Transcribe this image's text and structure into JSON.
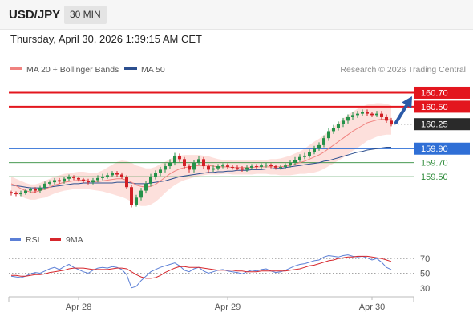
{
  "header": {
    "symbol": "USD/JPY",
    "interval": "30 MIN",
    "datetime": "Thursday, April 30, 2026 1:39:15 AM CET"
  },
  "legend": {
    "ma20": "MA 20 + Bollinger Bands",
    "ma50": "MA 50",
    "copyright": "Research © 2026 Trading Central",
    "rsi": "RSI",
    "rsi_ma": "9MA"
  },
  "colors": {
    "up": "#26924a",
    "down": "#d11f25",
    "resistance": "#e3161e",
    "support": "#2f6fd6",
    "target_green": "#2e8b3a",
    "ma20": "#f0827f",
    "ma50": "#2c4f8f",
    "bands_fill": "#fde0dc",
    "arrow": "#2b5aa8",
    "rsi": "#5b7fd6",
    "rsi_ma": "#d6262c"
  },
  "chart_data": [
    {
      "type": "candlestick",
      "title": "USD/JPY 30 MIN",
      "ylim": [
        159.02,
        160.82
      ],
      "x_labels": [
        "Apr 28",
        "Apr 29",
        "Apr 30"
      ],
      "levels": [
        {
          "value": 160.7,
          "label": "160.70",
          "kind": "resistance"
        },
        {
          "value": 160.5,
          "label": "160.50",
          "kind": "resistance"
        },
        {
          "value": 160.25,
          "label": "160.25",
          "kind": "last"
        },
        {
          "value": 159.9,
          "label": "159.90",
          "kind": "support"
        },
        {
          "value": 159.7,
          "label": "159.70",
          "kind": "target"
        },
        {
          "value": 159.5,
          "label": "159.50",
          "kind": "target"
        }
      ],
      "last_price": 160.25,
      "target_arrow": {
        "from": 160.25,
        "to": 160.66
      },
      "ohlc_open": [
        159.28,
        159.26,
        159.25,
        159.27,
        159.3,
        159.32,
        159.3,
        159.34,
        159.4,
        159.42,
        159.45,
        159.43,
        159.47,
        159.5,
        159.48,
        159.46,
        159.44,
        159.42,
        159.45,
        159.48,
        159.5,
        159.52,
        159.55,
        159.53,
        159.5,
        159.35,
        159.1,
        159.2,
        159.3,
        159.4,
        159.5,
        159.55,
        159.6,
        159.65,
        159.7,
        159.8,
        159.75,
        159.65,
        159.6,
        159.7,
        159.75,
        159.65,
        159.6,
        159.62,
        159.65,
        159.66,
        159.64,
        159.63,
        159.62,
        159.6,
        159.63,
        159.65,
        159.64,
        159.66,
        159.67,
        159.65,
        159.63,
        159.64,
        159.66,
        159.7,
        159.74,
        159.78,
        159.8,
        159.85,
        159.9,
        159.95,
        160.05,
        160.15,
        160.2,
        160.25,
        160.3,
        160.35,
        160.38,
        160.4,
        160.42,
        160.4,
        160.38,
        160.4,
        160.35,
        160.3
      ],
      "ohlc_close": [
        159.26,
        159.25,
        159.27,
        159.3,
        159.32,
        159.3,
        159.34,
        159.4,
        159.42,
        159.45,
        159.43,
        159.47,
        159.5,
        159.48,
        159.46,
        159.44,
        159.42,
        159.45,
        159.48,
        159.5,
        159.52,
        159.55,
        159.53,
        159.5,
        159.35,
        159.1,
        159.2,
        159.3,
        159.4,
        159.5,
        159.55,
        159.6,
        159.65,
        159.7,
        159.8,
        159.75,
        159.65,
        159.6,
        159.7,
        159.75,
        159.65,
        159.6,
        159.62,
        159.65,
        159.66,
        159.64,
        159.63,
        159.62,
        159.6,
        159.63,
        159.65,
        159.64,
        159.66,
        159.67,
        159.65,
        159.63,
        159.64,
        159.66,
        159.7,
        159.74,
        159.78,
        159.8,
        159.85,
        159.9,
        159.95,
        160.05,
        160.15,
        160.2,
        160.25,
        160.3,
        160.35,
        160.38,
        160.4,
        160.42,
        160.4,
        160.38,
        160.4,
        160.35,
        160.3,
        160.25
      ],
      "ohlc_high": [
        159.3,
        159.29,
        159.3,
        159.33,
        159.35,
        159.35,
        159.37,
        159.43,
        159.45,
        159.48,
        159.48,
        159.5,
        159.53,
        159.52,
        159.5,
        159.48,
        159.47,
        159.48,
        159.52,
        159.54,
        159.56,
        159.58,
        159.58,
        159.56,
        159.52,
        159.38,
        159.24,
        159.34,
        159.44,
        159.54,
        159.59,
        159.64,
        159.69,
        159.75,
        159.84,
        159.83,
        159.78,
        159.68,
        159.74,
        159.79,
        159.78,
        159.68,
        159.66,
        159.68,
        159.69,
        159.69,
        159.67,
        159.66,
        159.65,
        159.66,
        159.68,
        159.68,
        159.69,
        159.7,
        159.69,
        159.67,
        159.67,
        159.69,
        159.74,
        159.78,
        159.82,
        159.84,
        159.89,
        159.94,
        159.99,
        160.09,
        160.19,
        160.24,
        160.29,
        160.34,
        160.39,
        160.42,
        160.44,
        160.46,
        160.46,
        160.43,
        160.44,
        160.44,
        160.39,
        160.34
      ],
      "ohlc_low": [
        159.23,
        159.22,
        159.22,
        159.24,
        159.27,
        159.27,
        159.27,
        159.31,
        159.37,
        159.39,
        159.4,
        159.4,
        159.44,
        159.45,
        159.43,
        159.41,
        159.39,
        159.39,
        159.42,
        159.45,
        159.47,
        159.49,
        159.5,
        159.47,
        159.32,
        159.06,
        159.07,
        159.16,
        159.26,
        159.36,
        159.46,
        159.51,
        159.56,
        159.61,
        159.66,
        159.71,
        159.61,
        159.56,
        159.56,
        159.66,
        159.61,
        159.56,
        159.57,
        159.59,
        159.62,
        159.61,
        159.6,
        159.59,
        159.57,
        159.57,
        159.6,
        159.61,
        159.61,
        159.63,
        159.62,
        159.6,
        159.6,
        159.61,
        159.63,
        159.67,
        159.71,
        159.75,
        159.77,
        159.82,
        159.87,
        159.92,
        160.01,
        160.11,
        160.16,
        160.21,
        160.26,
        160.31,
        160.34,
        160.37,
        160.37,
        160.35,
        160.35,
        160.32,
        160.27,
        160.22
      ],
      "ma20": [
        159.4,
        159.37,
        159.33,
        159.3,
        159.28,
        159.28,
        159.3,
        159.32,
        159.35,
        159.38,
        159.4,
        159.42,
        159.43,
        159.44,
        159.45,
        159.45,
        159.44,
        159.43,
        159.43,
        159.44,
        159.45,
        159.46,
        159.47,
        159.47,
        159.45,
        159.42,
        159.38,
        159.36,
        159.35,
        159.36,
        159.39,
        159.44,
        159.49,
        159.54,
        159.58,
        159.61,
        159.63,
        159.64,
        159.65,
        159.66,
        159.66,
        159.66,
        159.65,
        159.64,
        159.64,
        159.64,
        159.63,
        159.63,
        159.63,
        159.63,
        159.63,
        159.64,
        159.64,
        159.64,
        159.64,
        159.64,
        159.64,
        159.65,
        159.66,
        159.68,
        159.7,
        159.72,
        159.75,
        159.78,
        159.81,
        159.85,
        159.9,
        159.95,
        160.0,
        160.05,
        160.1,
        160.15,
        160.19,
        160.23,
        160.27,
        160.29,
        160.31,
        160.32,
        160.32,
        160.31
      ],
      "ma50": [
        159.38,
        159.37,
        159.36,
        159.35,
        159.34,
        159.34,
        159.34,
        159.34,
        159.35,
        159.36,
        159.37,
        159.38,
        159.39,
        159.4,
        159.4,
        159.41,
        159.41,
        159.41,
        159.41,
        159.41,
        159.41,
        159.41,
        159.42,
        159.42,
        159.42,
        159.41,
        159.4,
        159.4,
        159.4,
        159.41,
        159.42,
        159.43,
        159.44,
        159.46,
        159.48,
        159.5,
        159.51,
        159.52,
        159.53,
        159.54,
        159.55,
        159.56,
        159.56,
        159.57,
        159.57,
        159.58,
        159.58,
        159.59,
        159.59,
        159.59,
        159.6,
        159.6,
        159.6,
        159.61,
        159.61,
        159.62,
        159.62,
        159.63,
        159.64,
        159.65,
        159.66,
        159.67,
        159.68,
        159.69,
        159.7,
        159.72,
        159.73,
        159.75,
        159.77,
        159.79,
        159.81,
        159.83,
        159.85,
        159.86,
        159.88,
        159.89,
        159.9,
        159.91,
        159.92,
        159.92
      ],
      "band_width": [
        0.1,
        0.1,
        0.11,
        0.11,
        0.11,
        0.11,
        0.11,
        0.12,
        0.12,
        0.12,
        0.12,
        0.12,
        0.12,
        0.12,
        0.12,
        0.12,
        0.12,
        0.12,
        0.13,
        0.15,
        0.18,
        0.21,
        0.24,
        0.26,
        0.27,
        0.28,
        0.28,
        0.28,
        0.27,
        0.26,
        0.25,
        0.24,
        0.22,
        0.21,
        0.2,
        0.19,
        0.18,
        0.17,
        0.16,
        0.15,
        0.14,
        0.13,
        0.12,
        0.11,
        0.1,
        0.1,
        0.1,
        0.1,
        0.1,
        0.1,
        0.1,
        0.1,
        0.1,
        0.1,
        0.11,
        0.11,
        0.12,
        0.13,
        0.14,
        0.15,
        0.16,
        0.18,
        0.2,
        0.22,
        0.23,
        0.24,
        0.25,
        0.26,
        0.27,
        0.28,
        0.28,
        0.28,
        0.28,
        0.27,
        0.26,
        0.25,
        0.24,
        0.23,
        0.22,
        0.21
      ]
    },
    {
      "type": "line",
      "title": "RSI",
      "ylim": [
        20,
        80
      ],
      "yticks": [
        70,
        50,
        30
      ],
      "series": [
        {
          "name": "RSI",
          "values": [
            46,
            45,
            44,
            46,
            49,
            51,
            50,
            53,
            56,
            58,
            55,
            59,
            62,
            58,
            55,
            52,
            50,
            54,
            57,
            58,
            57,
            59,
            58,
            55,
            48,
            30,
            32,
            40,
            46,
            52,
            55,
            58,
            60,
            62,
            64,
            60,
            54,
            52,
            56,
            58,
            53,
            50,
            52,
            54,
            55,
            53,
            52,
            51,
            49,
            52,
            54,
            53,
            55,
            56,
            53,
            51,
            52,
            54,
            57,
            60,
            62,
            63,
            65,
            67,
            68,
            72,
            74,
            73,
            72,
            74,
            75,
            73,
            72,
            73,
            71,
            68,
            70,
            65,
            58,
            55
          ]
        },
        {
          "name": "9MA",
          "values": [
            47,
            47,
            46,
            46,
            47,
            48,
            48,
            49,
            51,
            52,
            53,
            54,
            56,
            57,
            57,
            57,
            56,
            55,
            55,
            55,
            55,
            56,
            57,
            57,
            56,
            52,
            48,
            45,
            43,
            43,
            44,
            47,
            51,
            54,
            57,
            59,
            59,
            58,
            58,
            58,
            57,
            56,
            55,
            54,
            54,
            54,
            54,
            53,
            53,
            52,
            52,
            52,
            53,
            53,
            53,
            53,
            53,
            53,
            54,
            55,
            56,
            58,
            60,
            61,
            63,
            65,
            67,
            68,
            70,
            71,
            72,
            72,
            73,
            73,
            73,
            72,
            71,
            70,
            68,
            66
          ]
        }
      ]
    }
  ]
}
